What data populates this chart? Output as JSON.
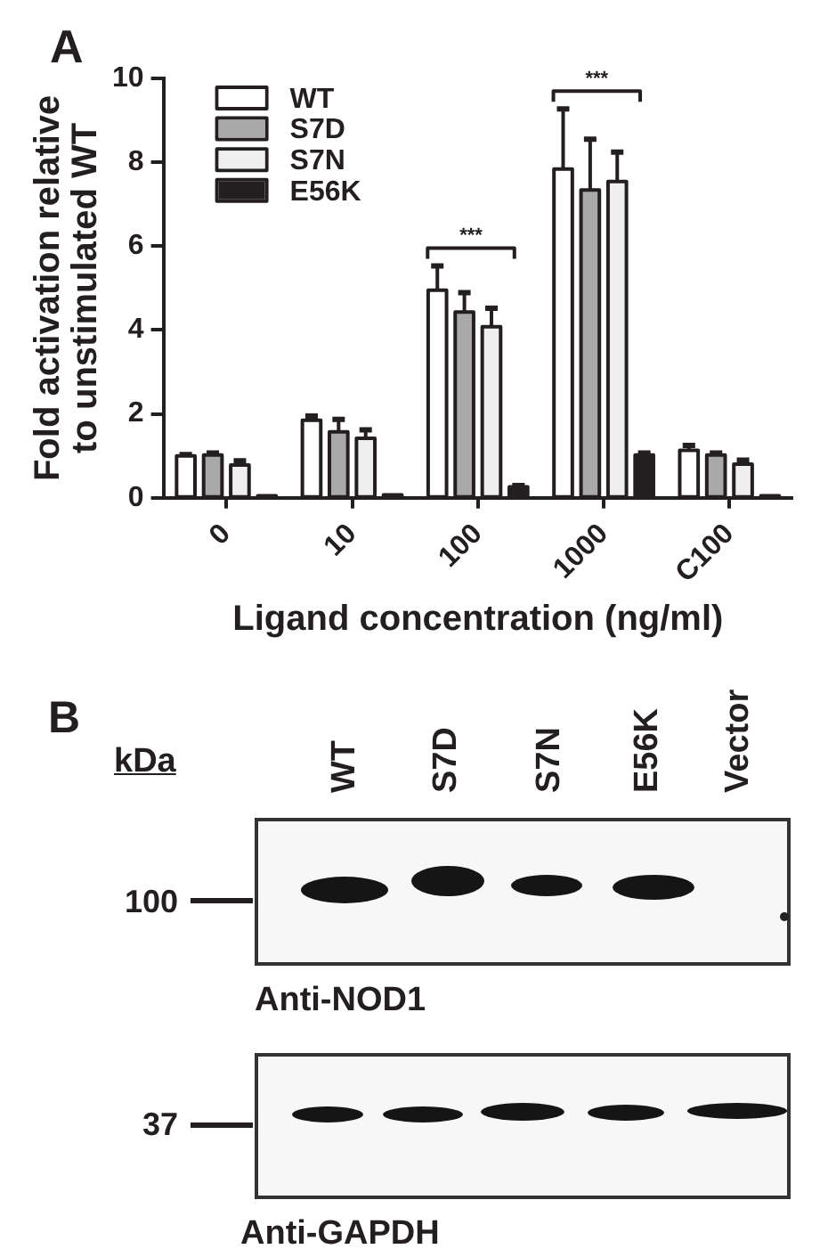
{
  "chart_data": [
    {
      "type": "bar",
      "title": "A",
      "xlabel": "Ligand concentration (ng/ml)",
      "ylabel": "Fold activation relative to unstimulated WT",
      "categories": [
        "0",
        "10",
        "100",
        "1000",
        "C100"
      ],
      "series": [
        {
          "name": "WT",
          "color": "#ffffff",
          "values": [
            1.0,
            1.85,
            4.95,
            7.84,
            1.13
          ],
          "errors": [
            0.03,
            0.1,
            0.58,
            1.43,
            0.12
          ]
        },
        {
          "name": "S7D",
          "color": "#a9a9a9",
          "values": [
            1.02,
            1.57,
            4.43,
            7.34,
            1.02
          ],
          "errors": [
            0.05,
            0.3,
            0.46,
            1.21,
            0.05
          ]
        },
        {
          "name": "S7N",
          "color": "#efefef",
          "values": [
            0.78,
            1.42,
            4.08,
            7.54,
            0.8
          ],
          "errors": [
            0.1,
            0.2,
            0.44,
            0.7,
            0.1
          ]
        },
        {
          "name": "E56K",
          "color": "#231f20",
          "values": [
            0.05,
            0.07,
            0.26,
            1.02,
            0.05
          ],
          "errors": [
            null,
            null,
            0.03,
            0.05,
            null
          ]
        }
      ],
      "ylim": [
        0,
        10
      ],
      "yticks": [
        0,
        2,
        4,
        6,
        8,
        10
      ],
      "legend": "top left",
      "annotations": [
        "***",
        "***"
      ]
    },
    {
      "type": "other",
      "title": "B",
      "ylabel": "kDa",
      "categories": [
        "WT",
        "S7D",
        "S7N",
        "E56K",
        "Vector"
      ],
      "annotations": [
        "100",
        "Anti-NOD1",
        "37",
        "Anti-GAPDH"
      ]
    }
  ]
}
